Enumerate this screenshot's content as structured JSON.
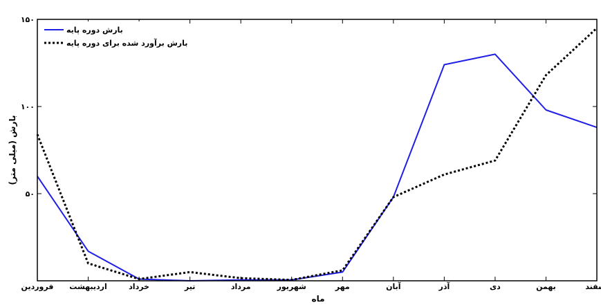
{
  "chart_data": {
    "type": "line",
    "categories": [
      "فروردین",
      "اردیبهشت",
      "خرداد",
      "تیر",
      "مرداد",
      "شهریور",
      "مهر",
      "آبان",
      "آذر",
      "دی",
      "بهمن",
      "اسفند"
    ],
    "series": [
      {
        "name": "بارش دوره پایه",
        "values": [
          60,
          17,
          1,
          0,
          0.5,
          0.5,
          5,
          48,
          124,
          130,
          98,
          88
        ],
        "color": "#1f1fe6",
        "style": "solid"
      },
      {
        "name": "بارش برآورد شده برای دوره پایه",
        "values": [
          84,
          10,
          1,
          5,
          1.5,
          0.5,
          6,
          48,
          61,
          69,
          118,
          145
        ],
        "color": "#000000",
        "style": "dotted"
      }
    ],
    "xlabel": "ماه",
    "ylabel": "بارش (میلی متر)",
    "ylim": [
      0,
      150
    ],
    "yticks": [
      {
        "value": 0,
        "label": ""
      },
      {
        "value": 50,
        "label": "۵۰"
      },
      {
        "value": 100,
        "label": "۱۰۰"
      },
      {
        "value": 150,
        "label": "۱۵۰"
      }
    ],
    "grid": false,
    "legend_position": "top-left"
  }
}
